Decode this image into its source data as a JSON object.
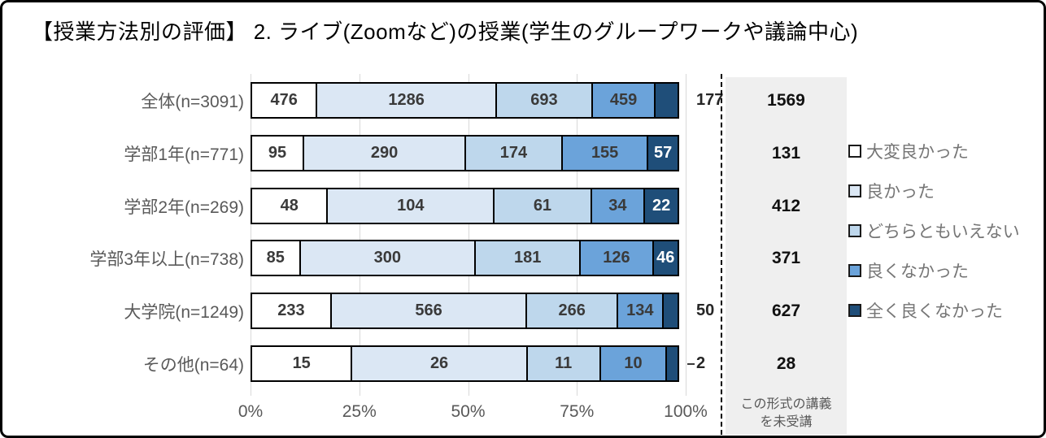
{
  "title": "【授業方法別の評価】 2. ライブ(Zoomなど)の授業(学生のグループワークや議論中心)",
  "colors": {
    "segment_palette": [
      "#ffffff",
      "#dbe7f4",
      "#bed7ec",
      "#6ba3da",
      "#1f4e79"
    ],
    "segment_border": "#000000",
    "gridline": "#d9d9d9",
    "unattended_column_bg": "#efefef",
    "category_label_text": "#595959",
    "legend_text": "#757575",
    "value_text": "#3a3a3a",
    "value_text_on_dark": "#ffffff"
  },
  "chart_data": {
    "type": "bar",
    "subtype": "100-percent-stacked-horizontal",
    "title": "【授業方法別の評価】 2. ライブ(Zoomなど)の授業(学生のグループワークや議論中心)",
    "categories": [
      "全体(n=3091)",
      "学部1年(n=771)",
      "学部2年(n=269)",
      "学部3年以上(n=738)",
      "大学院(n=1249)",
      "その他(n=64)"
    ],
    "series": [
      {
        "name": "大変良かった",
        "color": "#ffffff",
        "values": [
          476,
          95,
          48,
          85,
          233,
          15
        ]
      },
      {
        "name": "良かった",
        "color": "#dbe7f4",
        "values": [
          1286,
          290,
          104,
          300,
          566,
          26
        ]
      },
      {
        "name": "どちらともいえない",
        "color": "#bed7ec",
        "values": [
          693,
          174,
          61,
          181,
          266,
          11
        ]
      },
      {
        "name": "良くなかった",
        "color": "#6ba3da",
        "values": [
          459,
          155,
          34,
          126,
          134,
          10
        ]
      },
      {
        "name": "全く良くなかった",
        "color": "#1f4e79",
        "values": [
          177,
          57,
          22,
          46,
          50,
          2
        ]
      }
    ],
    "x_ticks": [
      "0%",
      "25%",
      "50%",
      "75%",
      "100%"
    ],
    "xlim": [
      0,
      100
    ],
    "grid": true,
    "legend_position": "right",
    "unattended": {
      "caption_line1": "この形式の講義",
      "caption_line2": "を未受講",
      "values": [
        1569,
        131,
        412,
        371,
        627,
        28
      ]
    }
  }
}
